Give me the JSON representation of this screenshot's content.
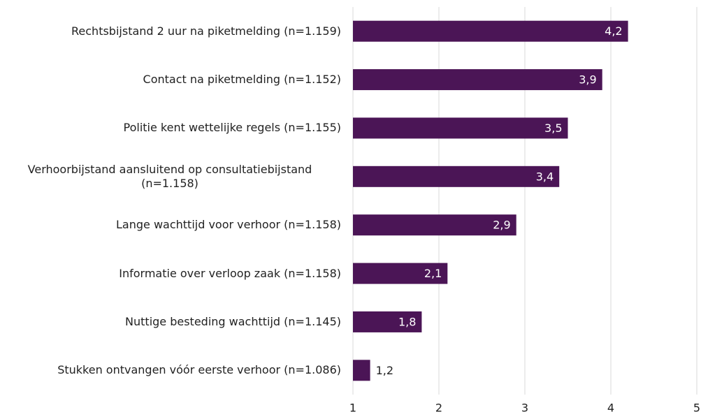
{
  "chart_data": {
    "type": "bar",
    "orientation": "horizontal",
    "categories": [
      "Rechtsbijstand 2 uur na piketmelding (n=1.159)",
      "Contact na piketmelding (n=1.152)",
      "Politie kent wettelijke regels (n=1.155)",
      "Verhoorbijstand aansluitend op consultatiebijstand (n=1.158)",
      "Lange wachttijd voor verhoor (n=1.158)",
      "Informatie over verloop zaak (n=1.158)",
      "Nuttige besteding wachttijd (n=1.145)",
      "Stukken ontvangen vóór eerste verhoor (n=1.086)"
    ],
    "values": [
      4.2,
      3.9,
      3.5,
      3.4,
      2.9,
      2.1,
      1.8,
      1.2
    ],
    "value_labels": [
      "4,2",
      "3,9",
      "3,5",
      "3,4",
      "2,9",
      "2,1",
      "1,8",
      "1,2"
    ],
    "color": "#4b1556",
    "xlim": [
      1,
      5
    ],
    "xticks": [
      1,
      2,
      3,
      4,
      5
    ],
    "grid": true
  }
}
